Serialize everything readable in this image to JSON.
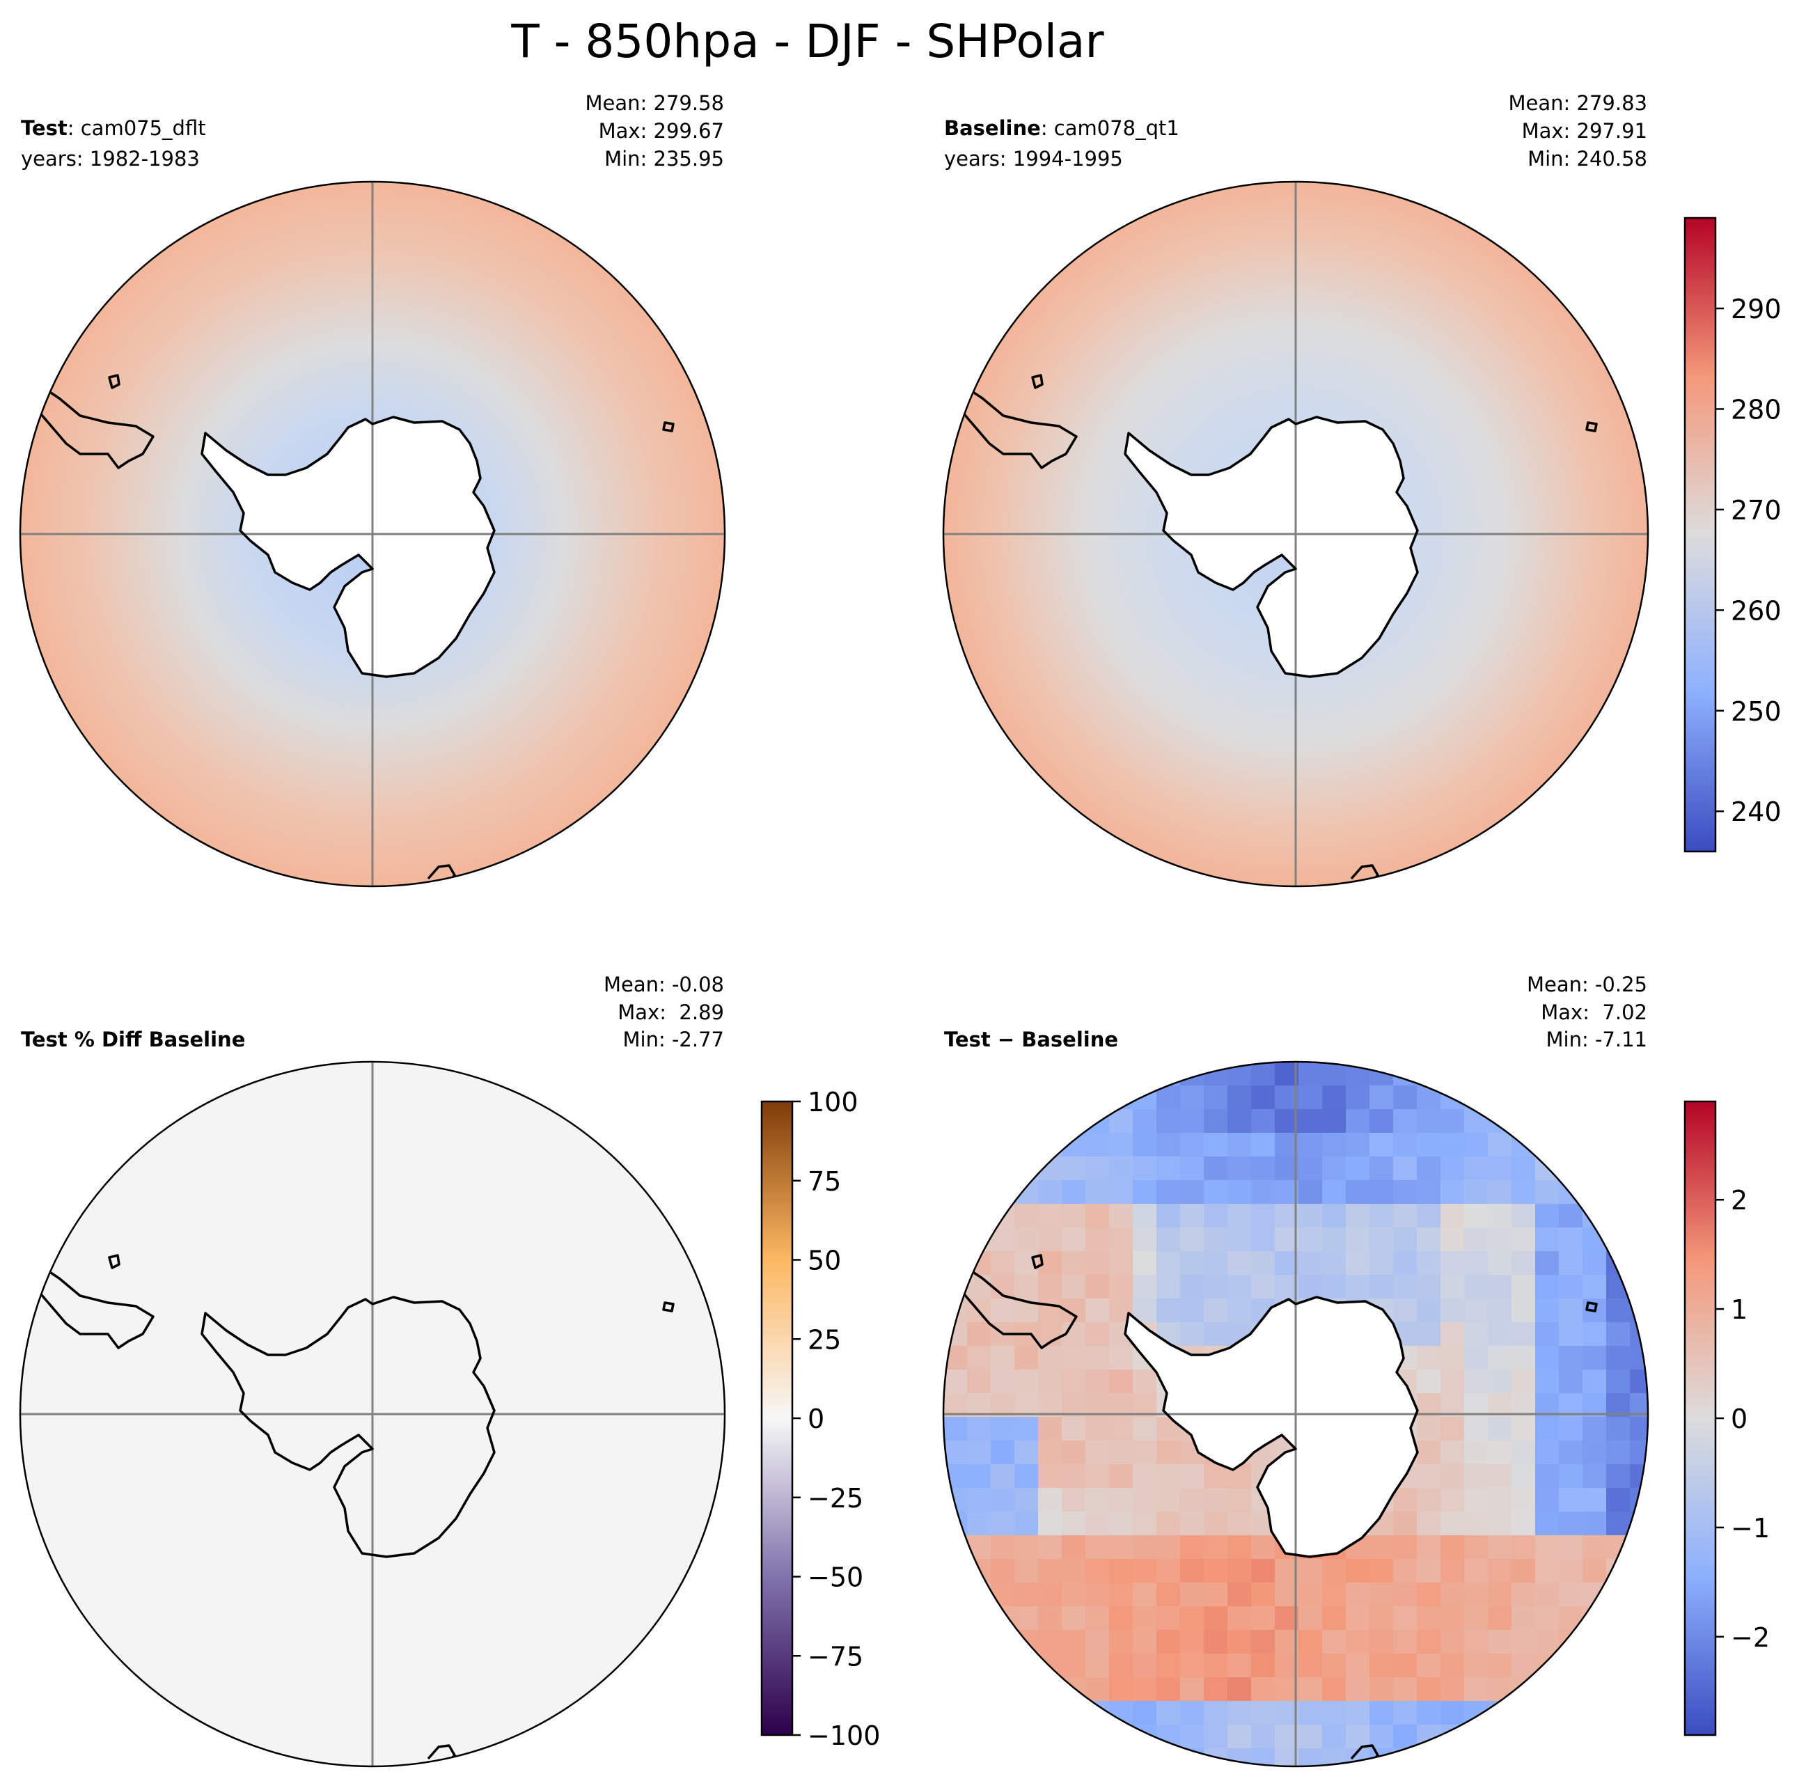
{
  "figure": {
    "title": "T - 850hpa - DJF - SHPolar"
  },
  "colors": {
    "ocean_warm": "#f4b9a0",
    "ocean_cool": "#dcdcdc",
    "near_ice": "#c9d8f0",
    "land_mask": "#ffffff",
    "pct_fill": "#f4f4f4",
    "grid_line": "#808080",
    "coast": "#000000"
  },
  "chart_data": [
    {
      "type": "heatmap",
      "panel": "test",
      "label_bold": "Test",
      "label_rest": ": cam075_dflt",
      "years": "years: 1982-1983",
      "stats": {
        "mean": "Mean: 279.58",
        "max": "Max: 299.67",
        "min": "Min: 235.95"
      },
      "projection": "south polar stereographic",
      "field_range": [
        235.95,
        299.67
      ]
    },
    {
      "type": "heatmap",
      "panel": "baseline",
      "label_bold": "Baseline",
      "label_rest": ": cam078_qt1",
      "years": "years: 1994-1995",
      "stats": {
        "mean": "Mean: 279.83",
        "max": "Max: 297.91",
        "min": "Min: 240.58"
      },
      "projection": "south polar stereographic",
      "field_range": [
        240.58,
        297.91
      ],
      "colorbar": {
        "range": [
          236,
          299
        ],
        "ticks": [
          240,
          250,
          260,
          270,
          280,
          290
        ],
        "tick_labels": [
          "240",
          "250",
          "260",
          "270",
          "280",
          "290"
        ],
        "cmap": "coolwarm"
      }
    },
    {
      "type": "heatmap",
      "panel": "pct_diff",
      "label_bold": "Test % Diff Baseline",
      "stats": {
        "mean": "Mean: -0.08",
        "max": "Max:  2.89",
        "min": "Min: -2.77"
      },
      "projection": "south polar stereographic",
      "colorbar": {
        "range": [
          -100,
          100
        ],
        "ticks": [
          100,
          75,
          50,
          25,
          0,
          -25,
          -50,
          -75,
          -100
        ],
        "tick_labels": [
          "100",
          "75",
          "50",
          "25",
          "0",
          "−25",
          "−50",
          "−75",
          "−100"
        ],
        "cmap": "PuOr_r"
      }
    },
    {
      "type": "heatmap",
      "panel": "diff",
      "label_bold": "Test − Baseline",
      "stats": {
        "mean": "Mean: -0.25",
        "max": "Max:  7.02",
        "min": "Min: -7.11"
      },
      "projection": "south polar stereographic",
      "colorbar": {
        "range": [
          -2.9,
          2.9
        ],
        "ticks": [
          2,
          1,
          0,
          -1,
          -2
        ],
        "tick_labels": [
          "2",
          "1",
          "0",
          "−1",
          "−2"
        ],
        "cmap": "coolwarm"
      }
    }
  ]
}
